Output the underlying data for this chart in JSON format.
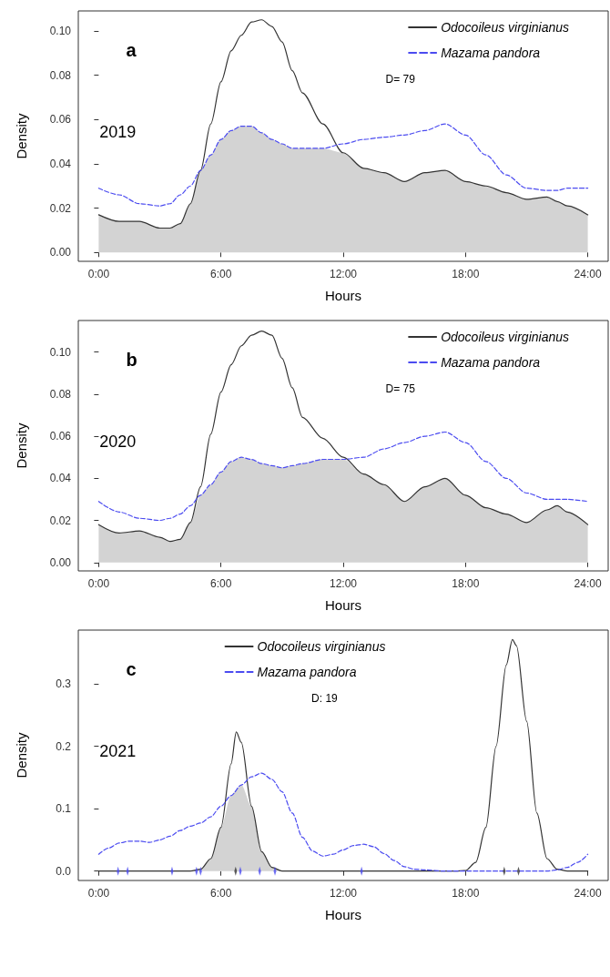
{
  "chart_data": [
    {
      "type": "line",
      "xlabel": "Hours",
      "ylabel": "Density",
      "annotations": [
        "a",
        "2019",
        "D= 79"
      ],
      "legend": "top right",
      "marker": "none",
      "grid": false,
      "xlim": [
        -1,
        25
      ],
      "xticks": [
        {
          "value": 0,
          "label": "0:00"
        },
        {
          "value": 6,
          "label": "6:00"
        },
        {
          "value": 12,
          "label": "12:00"
        },
        {
          "value": 18,
          "label": "18:00"
        },
        {
          "value": 24,
          "label": "24:00"
        }
      ],
      "ylim": [
        -0.004,
        0.109
      ],
      "yticks": [
        {
          "value": 0,
          "label": "0.00"
        },
        {
          "value": 0.02,
          "label": "0.02"
        },
        {
          "value": 0.04,
          "label": "0.04"
        },
        {
          "value": 0.06,
          "label": "0.06"
        },
        {
          "value": 0.08,
          "label": "0.08"
        },
        {
          "value": 0.1,
          "label": "0.10"
        }
      ],
      "series": [
        {
          "type": "area",
          "color": "#d3d3d3",
          "x": [
            0,
            1,
            2,
            3,
            3.5,
            4,
            4.5,
            5,
            5.5,
            6,
            6.5,
            7,
            7.5,
            8,
            8.5,
            9,
            9.5,
            10,
            11,
            12,
            13,
            14,
            15,
            16,
            17,
            18,
            19,
            20,
            21,
            22,
            22.5,
            23,
            24
          ],
          "values": [
            0.017,
            0.014,
            0.014,
            0.011,
            0.011,
            0.013,
            0.022,
            0.037,
            0.044,
            0.051,
            0.055,
            0.057,
            0.057,
            0.054,
            0.051,
            0.049,
            0.047,
            0.047,
            0.047,
            0.045,
            0.038,
            0.036,
            0.032,
            0.036,
            0.037,
            0.032,
            0.03,
            0.027,
            0.024,
            0.025,
            0.023,
            0.021,
            0.017
          ]
        },
        {
          "name": "Odocoileus virginianus",
          "color": "#333333",
          "line_style": "solid",
          "x": [
            0,
            1,
            2,
            3,
            3.5,
            4,
            4.5,
            5,
            5.5,
            6,
            6.5,
            7,
            7.5,
            8,
            8.5,
            9,
            9.5,
            10,
            11,
            12,
            13,
            14,
            15,
            16,
            17,
            18,
            19,
            20,
            21,
            22,
            22.5,
            23,
            24
          ],
          "values": [
            0.017,
            0.014,
            0.014,
            0.011,
            0.011,
            0.013,
            0.022,
            0.037,
            0.058,
            0.077,
            0.091,
            0.098,
            0.104,
            0.105,
            0.102,
            0.095,
            0.082,
            0.072,
            0.058,
            0.045,
            0.038,
            0.036,
            0.032,
            0.036,
            0.037,
            0.032,
            0.03,
            0.027,
            0.024,
            0.025,
            0.023,
            0.021,
            0.017
          ]
        },
        {
          "name": "Mazama pandora",
          "color": "#4b4bf0",
          "line_style": "dashed",
          "x": [
            0,
            1,
            2,
            3,
            3.5,
            4,
            4.5,
            5,
            5.5,
            6,
            6.5,
            7,
            7.5,
            8,
            8.5,
            9,
            9.5,
            10,
            11,
            12,
            13,
            14,
            15,
            16,
            17,
            18,
            19,
            20,
            21,
            22,
            22.5,
            23,
            24
          ],
          "values": [
            0.029,
            0.026,
            0.022,
            0.021,
            0.022,
            0.026,
            0.03,
            0.037,
            0.044,
            0.051,
            0.055,
            0.057,
            0.057,
            0.054,
            0.051,
            0.049,
            0.047,
            0.047,
            0.047,
            0.049,
            0.051,
            0.052,
            0.053,
            0.055,
            0.058,
            0.053,
            0.044,
            0.035,
            0.029,
            0.028,
            0.028,
            0.029,
            0.029
          ]
        }
      ]
    },
    {
      "type": "line",
      "xlabel": "Hours",
      "ylabel": "Density",
      "annotations": [
        "b",
        "2020",
        "D= 75"
      ],
      "legend": "top right",
      "marker": "none",
      "grid": false,
      "xlim": [
        -1,
        25
      ],
      "xticks": [
        {
          "value": 0,
          "label": "0:00"
        },
        {
          "value": 6,
          "label": "6:00"
        },
        {
          "value": 12,
          "label": "12:00"
        },
        {
          "value": 18,
          "label": "18:00"
        },
        {
          "value": 24,
          "label": "24:00"
        }
      ],
      "ylim": [
        -0.004,
        0.115
      ],
      "yticks": [
        {
          "value": 0,
          "label": "0.00"
        },
        {
          "value": 0.02,
          "label": "0.02"
        },
        {
          "value": 0.04,
          "label": "0.04"
        },
        {
          "value": 0.06,
          "label": "0.06"
        },
        {
          "value": 0.08,
          "label": "0.08"
        },
        {
          "value": 0.1,
          "label": "0.10"
        }
      ],
      "series": [
        {
          "type": "area",
          "color": "#d3d3d3",
          "x": [
            0,
            1,
            2,
            3,
            3.5,
            4,
            4.5,
            5,
            5.5,
            6,
            6.5,
            7,
            7.5,
            8,
            8.5,
            9,
            9.5,
            10,
            11,
            12,
            13,
            14,
            15,
            16,
            17,
            18,
            19,
            20,
            21,
            22,
            22.5,
            23,
            24
          ],
          "values": [
            0.018,
            0.014,
            0.015,
            0.012,
            0.01,
            0.011,
            0.019,
            0.032,
            0.037,
            0.043,
            0.048,
            0.05,
            0.049,
            0.047,
            0.046,
            0.045,
            0.046,
            0.047,
            0.049,
            0.049,
            0.042,
            0.037,
            0.029,
            0.036,
            0.04,
            0.032,
            0.026,
            0.023,
            0.019,
            0.025,
            0.027,
            0.024,
            0.018
          ]
        },
        {
          "name": "Odocoileus virginianus",
          "color": "#333333",
          "line_style": "solid",
          "x": [
            0,
            1,
            2,
            3,
            3.5,
            4,
            4.5,
            5,
            5.5,
            6,
            6.5,
            7,
            7.5,
            8,
            8.5,
            9,
            9.5,
            10,
            11,
            12,
            13,
            14,
            15,
            16,
            17,
            18,
            19,
            20,
            21,
            22,
            22.5,
            23,
            24
          ],
          "values": [
            0.018,
            0.014,
            0.015,
            0.012,
            0.01,
            0.011,
            0.019,
            0.036,
            0.061,
            0.081,
            0.094,
            0.103,
            0.108,
            0.11,
            0.108,
            0.097,
            0.083,
            0.069,
            0.059,
            0.05,
            0.042,
            0.037,
            0.029,
            0.036,
            0.04,
            0.032,
            0.026,
            0.023,
            0.019,
            0.025,
            0.027,
            0.024,
            0.018
          ]
        },
        {
          "name": "Mazama pandora",
          "color": "#4b4bf0",
          "line_style": "dashed",
          "x": [
            0,
            1,
            2,
            3,
            3.5,
            4,
            4.5,
            5,
            5.5,
            6,
            6.5,
            7,
            7.5,
            8,
            8.5,
            9,
            9.5,
            10,
            11,
            12,
            13,
            14,
            15,
            16,
            17,
            18,
            19,
            20,
            21,
            22,
            22.5,
            23,
            24
          ],
          "values": [
            0.029,
            0.024,
            0.021,
            0.02,
            0.021,
            0.023,
            0.027,
            0.032,
            0.037,
            0.043,
            0.048,
            0.05,
            0.049,
            0.047,
            0.046,
            0.045,
            0.046,
            0.047,
            0.049,
            0.049,
            0.05,
            0.054,
            0.057,
            0.06,
            0.062,
            0.057,
            0.048,
            0.04,
            0.033,
            0.03,
            0.03,
            0.03,
            0.029
          ]
        }
      ]
    },
    {
      "type": "line",
      "xlabel": "Hours",
      "ylabel": "Density",
      "annotations": [
        "c",
        "2021",
        "D: 19"
      ],
      "legend": "top",
      "marker": "none",
      "grid": false,
      "xlim": [
        -1,
        25
      ],
      "xticks": [
        {
          "value": 0,
          "label": "0:00"
        },
        {
          "value": 6,
          "label": "6:00"
        },
        {
          "value": 12,
          "label": "12:00"
        },
        {
          "value": 18,
          "label": "18:00"
        },
        {
          "value": 24,
          "label": "24:00"
        }
      ],
      "ylim": [
        -0.015,
        0.386
      ],
      "yticks": [
        {
          "value": 0,
          "label": "0.0"
        },
        {
          "value": 0.1,
          "label": "0.1"
        },
        {
          "value": 0.2,
          "label": "0.2"
        },
        {
          "value": 0.3,
          "label": "0.3"
        }
      ],
      "series": [
        {
          "type": "area",
          "color": "#d3d3d3",
          "x": [
            4.5,
            5,
            5.5,
            6,
            6.5,
            6.75,
            7,
            7.5,
            8,
            8.5,
            9
          ],
          "values": [
            0,
            0.003,
            0.02,
            0.07,
            0.121,
            0.13,
            0.138,
            0.104,
            0.031,
            0.006,
            0
          ]
        },
        {
          "name": "Odocoileus virginianus",
          "color": "#333333",
          "line_style": "solid",
          "x": [
            0,
            4.5,
            5,
            5.5,
            6,
            6.5,
            6.75,
            7,
            7.5,
            8,
            8.5,
            9,
            17.5,
            18,
            18.5,
            19,
            19.5,
            20,
            20.3,
            20.5,
            21,
            21.5,
            22,
            22.5,
            23,
            24
          ],
          "values": [
            0,
            0,
            0.003,
            0.02,
            0.07,
            0.172,
            0.223,
            0.206,
            0.104,
            0.031,
            0.006,
            0,
            0,
            0.001,
            0.014,
            0.07,
            0.2,
            0.33,
            0.371,
            0.361,
            0.24,
            0.093,
            0.02,
            0.003,
            0,
            0
          ]
        },
        {
          "name": "Mazama pandora",
          "color": "#4b4bf0",
          "line_style": "dashed",
          "x": [
            0,
            0.5,
            1,
            1.5,
            2,
            2.5,
            3,
            3.5,
            4,
            4.5,
            5,
            5.5,
            6,
            6.5,
            7,
            7.5,
            8,
            8.5,
            9,
            9.5,
            10,
            10.5,
            11,
            11.5,
            12,
            12.5,
            13,
            13.5,
            14,
            14.5,
            15,
            15.5,
            16,
            17,
            22,
            22.5,
            23,
            23.5,
            24
          ],
          "values": [
            0.027,
            0.037,
            0.045,
            0.048,
            0.048,
            0.046,
            0.05,
            0.056,
            0.065,
            0.072,
            0.077,
            0.087,
            0.104,
            0.121,
            0.138,
            0.151,
            0.157,
            0.147,
            0.127,
            0.093,
            0.054,
            0.032,
            0.024,
            0.027,
            0.034,
            0.041,
            0.043,
            0.039,
            0.028,
            0.017,
            0.007,
            0.003,
            0.002,
            0,
            0,
            0.002,
            0.006,
            0.014,
            0.027
          ]
        },
        {
          "type": "scatter",
          "marker": "diamond",
          "color": "#4b4bf0",
          "x": [
            0.95,
            1.42,
            3.6,
            4.8,
            5.0,
            6.95,
            7.9,
            8.65,
            12.9
          ],
          "values": [
            0,
            0,
            0,
            0,
            0,
            0,
            0,
            0,
            0
          ]
        },
        {
          "type": "scatter",
          "marker": "diamond",
          "color": "#333333",
          "x": [
            6.72,
            19.9,
            20.6
          ],
          "values": [
            0,
            0,
            0
          ]
        }
      ]
    }
  ]
}
